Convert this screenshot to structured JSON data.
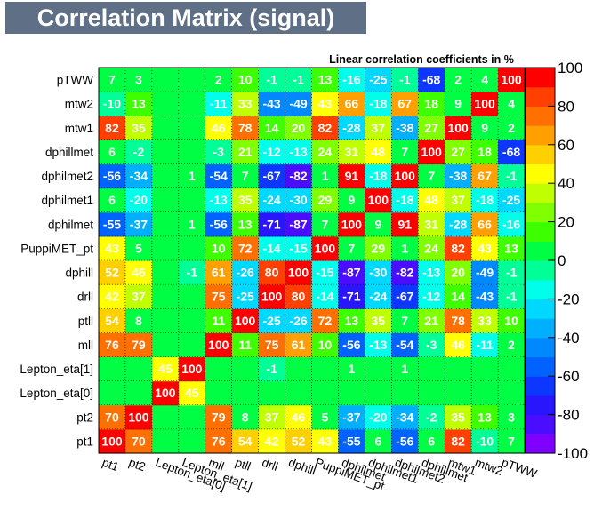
{
  "header": {
    "title": "Correlation Matrix (signal)"
  },
  "chart_data": {
    "type": "heatmap",
    "title": "Linear correlation coefficients in %",
    "variables": [
      "pt1",
      "pt2",
      "Lepton_eta[0]",
      "Lepton_eta[1]",
      "mll",
      "ptll",
      "drll",
      "dphill",
      "PuppiMET_pt",
      "dphilmet",
      "dphilmet1",
      "dphilmet2",
      "dphillmet",
      "mtw1",
      "mtw2",
      "pTWW"
    ],
    "x_labels": [
      "pt1",
      "pt2",
      "Lepton_eta[0]",
      "Lepton_eta[1]",
      "mll",
      "ptll",
      "drll",
      "dphill",
      "PuppiMET_pt",
      "dphilmet",
      "dphilmet1",
      "dphilmet2",
      "dphillmet",
      "mtw1",
      "mtw2",
      "pTWW"
    ],
    "y_labels": [
      "pt1",
      "pt2",
      "Lepton_eta[0]",
      "Lepton_eta[1]",
      "mll",
      "ptll",
      "drll",
      "dphill",
      "PuppiMET_pt",
      "dphilmet",
      "dphilmet1",
      "dphilmet2",
      "dphillmet",
      "mtw1",
      "mtw2",
      "pTWW"
    ],
    "matrix": [
      [
        100,
        70,
        null,
        null,
        76,
        54,
        42,
        52,
        43,
        -55,
        6,
        -56,
        6,
        82,
        -10,
        7
      ],
      [
        70,
        100,
        null,
        null,
        79,
        8,
        37,
        46,
        5,
        -37,
        -20,
        -34,
        -2,
        35,
        13,
        3
      ],
      [
        null,
        null,
        100,
        45,
        null,
        null,
        null,
        null,
        null,
        null,
        null,
        null,
        null,
        null,
        null,
        null
      ],
      [
        null,
        null,
        45,
        100,
        null,
        null,
        -1,
        null,
        null,
        1,
        null,
        1,
        null,
        null,
        null,
        null
      ],
      [
        76,
        79,
        null,
        null,
        100,
        11,
        75,
        61,
        10,
        -56,
        -13,
        -54,
        -3,
        46,
        -11,
        2
      ],
      [
        54,
        8,
        null,
        null,
        11,
        100,
        -25,
        -26,
        72,
        13,
        35,
        7,
        21,
        78,
        33,
        10
      ],
      [
        42,
        37,
        null,
        null,
        75,
        -25,
        100,
        80,
        -14,
        -71,
        -24,
        -67,
        -12,
        14,
        -43,
        -1
      ],
      [
        52,
        46,
        null,
        -1,
        61,
        -26,
        80,
        100,
        -15,
        -87,
        -30,
        -82,
        -13,
        20,
        -49,
        -1
      ],
      [
        43,
        5,
        null,
        null,
        10,
        72,
        -14,
        -15,
        100,
        7,
        29,
        1,
        24,
        82,
        43,
        13
      ],
      [
        -55,
        -37,
        null,
        1,
        -56,
        13,
        -71,
        -87,
        7,
        100,
        9,
        91,
        31,
        -28,
        66,
        -16
      ],
      [
        6,
        -20,
        null,
        null,
        -13,
        35,
        -24,
        -30,
        29,
        9,
        100,
        -18,
        48,
        37,
        -18,
        -25
      ],
      [
        -56,
        -34,
        null,
        1,
        -54,
        7,
        -67,
        -82,
        1,
        91,
        -18,
        100,
        7,
        -38,
        67,
        -1
      ],
      [
        6,
        -2,
        null,
        null,
        -3,
        21,
        -12,
        -13,
        24,
        31,
        48,
        7,
        100,
        27,
        18,
        -68
      ],
      [
        82,
        35,
        null,
        null,
        46,
        78,
        14,
        20,
        82,
        -28,
        37,
        -38,
        27,
        100,
        9,
        2
      ],
      [
        -10,
        13,
        null,
        null,
        -11,
        33,
        -43,
        -49,
        43,
        66,
        -18,
        67,
        18,
        9,
        100,
        4
      ],
      [
        7,
        3,
        null,
        null,
        2,
        10,
        -1,
        -1,
        13,
        -16,
        -25,
        -1,
        -68,
        2,
        4,
        100
      ]
    ],
    "zlim": [
      -100,
      100
    ],
    "colorbar_ticks": [
      100,
      80,
      60,
      40,
      20,
      0,
      -20,
      -40,
      -60,
      -80,
      -100
    ],
    "palette": [
      "#8000ff",
      "#4b0dff",
      "#2a15ff",
      "#0d37ff",
      "#0062ff",
      "#0088ff",
      "#00b0ff",
      "#00d9ff",
      "#00ffea",
      "#00ff97",
      "#00ff44",
      "#3dff00",
      "#80ff00",
      "#c0ff00",
      "#ffff00",
      "#ffd000",
      "#ffa000",
      "#ff7000",
      "#ff4000",
      "#ff0000"
    ],
    "grid": true,
    "legend": "right"
  }
}
